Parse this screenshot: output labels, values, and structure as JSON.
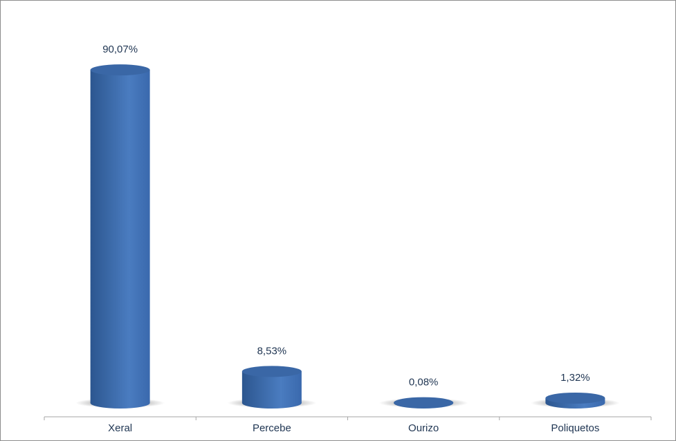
{
  "chart_data": {
    "type": "bar",
    "categories": [
      "Xeral",
      "Percebe",
      "Ourizo",
      "Poliquetos"
    ],
    "values": [
      90.07,
      8.53,
      0.08,
      1.32
    ],
    "value_labels": [
      "90,07%",
      "8,53%",
      "0,08%",
      "1,32%"
    ],
    "color": "#4a7cc0"
  }
}
